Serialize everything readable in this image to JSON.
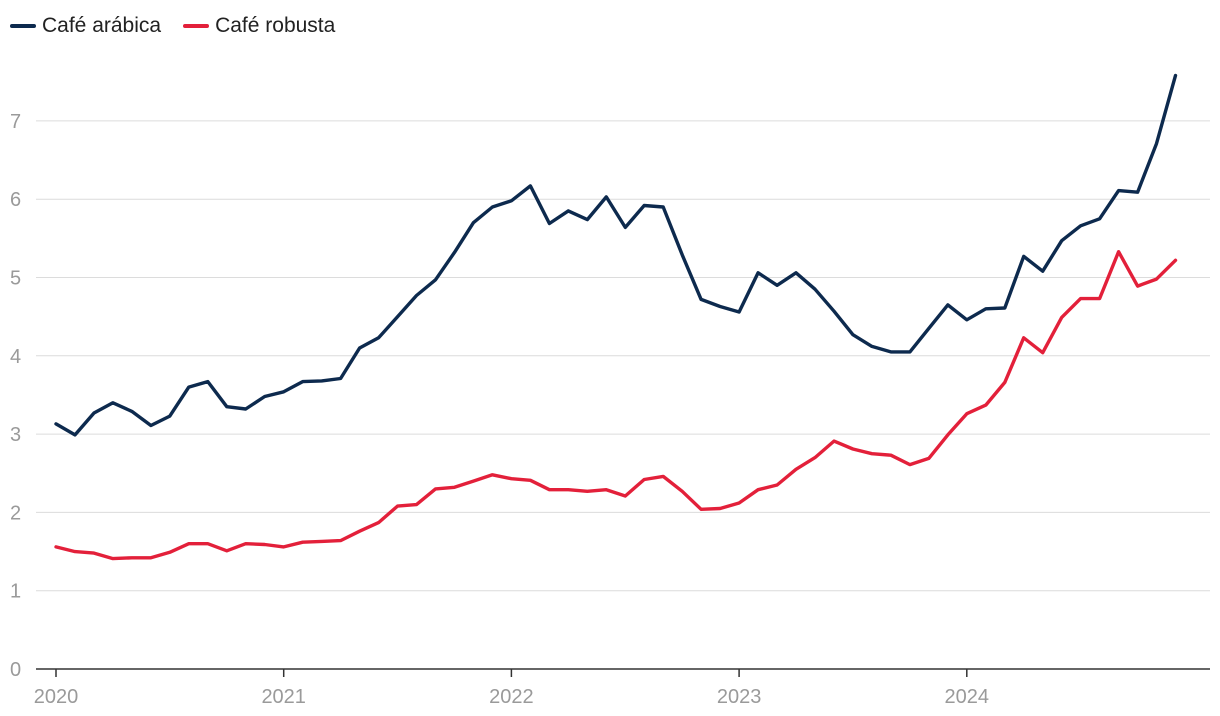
{
  "chart_data": {
    "type": "line",
    "title": "",
    "xlabel": "",
    "ylabel": "",
    "ylim": [
      0,
      7.6
    ],
    "yticks": [
      0,
      1,
      2,
      3,
      4,
      5,
      6,
      7
    ],
    "xlim": [
      2020,
      2025
    ],
    "xticks": [
      2020,
      2021,
      2022,
      2023,
      2024
    ],
    "grid": true,
    "legend_position": "top-left",
    "series": [
      {
        "name": "Café arábica",
        "color": "#0d2a4e",
        "values": [
          3.13,
          2.99,
          3.27,
          3.4,
          3.29,
          3.11,
          3.23,
          3.6,
          3.67,
          3.35,
          3.32,
          3.48,
          3.54,
          3.67,
          3.68,
          3.71,
          4.1,
          4.23,
          4.5,
          4.77,
          4.97,
          5.32,
          5.7,
          5.9,
          5.98,
          6.17,
          5.69,
          5.85,
          5.74,
          6.03,
          5.64,
          5.92,
          5.9,
          5.29,
          4.72,
          4.63,
          4.56,
          5.06,
          4.9,
          5.06,
          4.85,
          4.57,
          4.27,
          4.12,
          4.05,
          4.05,
          4.35,
          4.65,
          4.46,
          4.6,
          4.61,
          5.27,
          5.08,
          5.47,
          5.66,
          5.75,
          6.11,
          6.09,
          6.71,
          7.58
        ]
      },
      {
        "name": "Café robusta",
        "color": "#e3203a",
        "values": [
          1.56,
          1.5,
          1.48,
          1.41,
          1.42,
          1.42,
          1.49,
          1.6,
          1.6,
          1.51,
          1.6,
          1.59,
          1.56,
          1.62,
          1.63,
          1.64,
          1.76,
          1.87,
          2.08,
          2.1,
          2.3,
          2.32,
          2.4,
          2.48,
          2.43,
          2.41,
          2.29,
          2.29,
          2.27,
          2.29,
          2.21,
          2.42,
          2.46,
          2.27,
          2.04,
          2.05,
          2.12,
          2.29,
          2.35,
          2.55,
          2.7,
          2.91,
          2.81,
          2.75,
          2.73,
          2.61,
          2.69,
          2.99,
          3.26,
          3.37,
          3.66,
          4.23,
          4.04,
          4.49,
          4.73,
          4.73,
          5.33,
          4.89,
          4.98,
          5.22
        ]
      }
    ]
  }
}
